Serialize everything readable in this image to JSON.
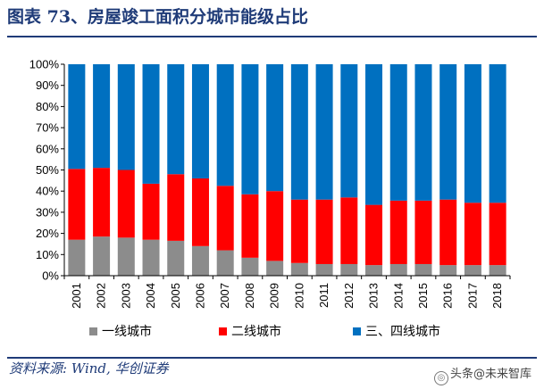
{
  "header": {
    "title": "图表 73、房屋竣工面积分城市能级占比"
  },
  "footer": {
    "source": "资料来源: Wind, 华创证券",
    "watermark": "头条@未来智库"
  },
  "chart_data": {
    "type": "bar",
    "stacked": true,
    "categories": [
      "2001",
      "2002",
      "2003",
      "2004",
      "2005",
      "2006",
      "2007",
      "2008",
      "2009",
      "2010",
      "2011",
      "2012",
      "2013",
      "2014",
      "2015",
      "2016",
      "2017",
      "2018"
    ],
    "series": [
      {
        "name": "一线城市",
        "color": "#8c8c8c",
        "values": [
          17,
          18.5,
          18,
          17,
          16.5,
          14,
          12,
          8.5,
          7,
          6,
          5.5,
          5.5,
          5,
          5.5,
          5.5,
          5,
          5,
          5
        ]
      },
      {
        "name": "二线城市",
        "color": "#ff0000",
        "values": [
          33.5,
          32.5,
          32,
          26.5,
          31.5,
          32,
          30.5,
          30,
          33,
          30,
          30.5,
          31.5,
          28.5,
          30,
          30,
          31,
          29.5,
          29.5
        ]
      },
      {
        "name": "三、四线城市",
        "color": "#0070c0",
        "values": [
          49.5,
          49,
          50,
          56.5,
          52,
          54,
          57.5,
          61.5,
          60,
          64,
          64,
          63,
          66.5,
          64.5,
          64.5,
          64,
          65.5,
          65.5
        ]
      }
    ],
    "yticks": [
      "0%",
      "10%",
      "20%",
      "30%",
      "40%",
      "50%",
      "60%",
      "70%",
      "80%",
      "90%",
      "100%"
    ],
    "ylim": [
      0,
      100
    ],
    "legend_position": "bottom",
    "grid": false
  }
}
